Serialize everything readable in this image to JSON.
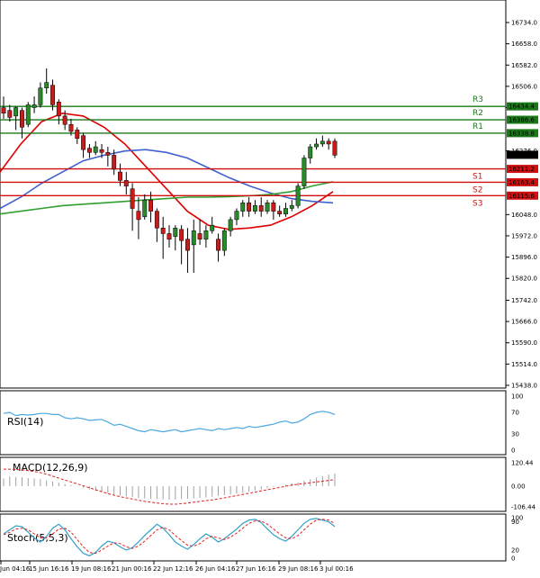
{
  "chart_data": {
    "type": "candlestick",
    "price_axis": {
      "min": 15400,
      "max": 16800,
      "ticks": [
        "16734.0",
        "16658.0",
        "16582.0",
        "16506.0",
        "16430.0",
        "16276.0",
        "16048.0",
        "15972.0",
        "15896.0",
        "15820.0",
        "15742.0",
        "15666.0",
        "15590.0",
        "15514.0",
        "15438.0"
      ],
      "current_price": "16261.5"
    },
    "levels": [
      {
        "name": "R3",
        "value": 16434.4,
        "label": "16434.4",
        "color": "#1a7a1a"
      },
      {
        "name": "R2",
        "value": 16386.6,
        "label": "16386.6",
        "color": "#1a7a1a"
      },
      {
        "name": "R1",
        "value": 16338.8,
        "label": "16338.8",
        "color": "#1a7a1a"
      },
      {
        "name": "S1",
        "value": 16211.2,
        "label": "16211.2",
        "color": "#d01010"
      },
      {
        "name": "S2",
        "value": 16163.4,
        "label": "16163.4",
        "color": "#d01010"
      },
      {
        "name": "S3",
        "value": 16115.6,
        "label": "16115.6",
        "color": "#d01010"
      }
    ],
    "candles": [
      {
        "o": 16430,
        "h": 16470,
        "c": 16410,
        "l": 16390
      },
      {
        "o": 16420,
        "h": 16440,
        "c": 16395,
        "l": 16380
      },
      {
        "o": 16400,
        "h": 16435,
        "c": 16430,
        "l": 16350
      },
      {
        "o": 16420,
        "h": 16430,
        "c": 16360,
        "l": 16320
      },
      {
        "o": 16370,
        "h": 16450,
        "c": 16440,
        "l": 16360
      },
      {
        "o": 16430,
        "h": 16470,
        "c": 16440,
        "l": 16410
      },
      {
        "o": 16440,
        "h": 16520,
        "c": 16500,
        "l": 16430
      },
      {
        "o": 16500,
        "h": 16570,
        "c": 16520,
        "l": 16480
      },
      {
        "o": 16510,
        "h": 16530,
        "c": 16440,
        "l": 16420
      },
      {
        "o": 16450,
        "h": 16460,
        "c": 16400,
        "l": 16370
      },
      {
        "o": 16400,
        "h": 16420,
        "c": 16370,
        "l": 16350
      },
      {
        "o": 16370,
        "h": 16390,
        "c": 16345,
        "l": 16330
      },
      {
        "o": 16350,
        "h": 16360,
        "c": 16320,
        "l": 16300
      },
      {
        "o": 16330,
        "h": 16340,
        "c": 16280,
        "l": 16250
      },
      {
        "o": 16285,
        "h": 16300,
        "c": 16270,
        "l": 16250
      },
      {
        "o": 16270,
        "h": 16310,
        "c": 16290,
        "l": 16260
      },
      {
        "o": 16280,
        "h": 16300,
        "c": 16270,
        "l": 16250
      },
      {
        "o": 16270,
        "h": 16290,
        "c": 16260,
        "l": 16220
      },
      {
        "o": 16260,
        "h": 16280,
        "c": 16210,
        "l": 16190
      },
      {
        "o": 16200,
        "h": 16230,
        "c": 16170,
        "l": 16150
      },
      {
        "o": 16170,
        "h": 16200,
        "c": 16150,
        "l": 16120
      },
      {
        "o": 16140,
        "h": 16160,
        "c": 16070,
        "l": 15990
      },
      {
        "o": 16060,
        "h": 16110,
        "c": 16030,
        "l": 15960
      },
      {
        "o": 16040,
        "h": 16120,
        "c": 16100,
        "l": 16030
      },
      {
        "o": 16100,
        "h": 16130,
        "c": 16060,
        "l": 16020
      },
      {
        "o": 16060,
        "h": 16070,
        "c": 16000,
        "l": 15950
      },
      {
        "o": 16000,
        "h": 16040,
        "c": 15980,
        "l": 15890
      },
      {
        "o": 15980,
        "h": 16010,
        "c": 15960,
        "l": 15930
      },
      {
        "o": 15970,
        "h": 16010,
        "c": 16000,
        "l": 15920
      },
      {
        "o": 15995,
        "h": 16010,
        "c": 15955,
        "l": 15870
      },
      {
        "o": 15960,
        "h": 16000,
        "c": 15920,
        "l": 15840
      },
      {
        "o": 15940,
        "h": 16030,
        "c": 15990,
        "l": 15840
      },
      {
        "o": 15980,
        "h": 16030,
        "c": 15960,
        "l": 15940
      },
      {
        "o": 15960,
        "h": 16010,
        "c": 15990,
        "l": 15930
      },
      {
        "o": 15990,
        "h": 16040,
        "c": 16010,
        "l": 15980
      },
      {
        "o": 15960,
        "h": 15980,
        "c": 15920,
        "l": 15880
      },
      {
        "o": 15920,
        "h": 16000,
        "c": 15990,
        "l": 15900
      },
      {
        "o": 15990,
        "h": 16040,
        "c": 16030,
        "l": 15970
      },
      {
        "o": 16030,
        "h": 16070,
        "c": 16060,
        "l": 16010
      },
      {
        "o": 16060,
        "h": 16100,
        "c": 16090,
        "l": 16040
      },
      {
        "o": 16090,
        "h": 16110,
        "c": 16060,
        "l": 16040
      },
      {
        "o": 16060,
        "h": 16100,
        "c": 16080,
        "l": 16050
      },
      {
        "o": 16080,
        "h": 16110,
        "c": 16060,
        "l": 16040
      },
      {
        "o": 16060,
        "h": 16100,
        "c": 16090,
        "l": 16050
      },
      {
        "o": 16090,
        "h": 16100,
        "c": 16060,
        "l": 16030
      },
      {
        "o": 16060,
        "h": 16080,
        "c": 16050,
        "l": 16040
      },
      {
        "o": 16050,
        "h": 16090,
        "c": 16070,
        "l": 16040
      },
      {
        "o": 16070,
        "h": 16100,
        "c": 16080,
        "l": 16060
      },
      {
        "o": 16080,
        "h": 16160,
        "c": 16150,
        "l": 16070
      },
      {
        "o": 16150,
        "h": 16260,
        "c": 16250,
        "l": 16140
      },
      {
        "o": 16250,
        "h": 16300,
        "c": 16290,
        "l": 16230
      },
      {
        "o": 16290,
        "h": 16320,
        "c": 16300,
        "l": 16280
      },
      {
        "o": 16300,
        "h": 16330,
        "c": 16310,
        "l": 16290
      },
      {
        "o": 16310,
        "h": 16320,
        "c": 16300,
        "l": 16280
      },
      {
        "o": 16310,
        "h": 16320,
        "c": 16260,
        "l": 16250
      }
    ],
    "moving_averages": [
      {
        "name": "MA fast",
        "color": "#e00000",
        "values": [
          16200,
          16300,
          16380,
          16410,
          16400,
          16360,
          16300,
          16220,
          16140,
          16060,
          16010,
          15995,
          16000,
          16010,
          16040,
          16080,
          16130
        ]
      },
      {
        "name": "MA slow",
        "color": "#4060d0",
        "values": [
          16070,
          16110,
          16160,
          16200,
          16240,
          16260,
          16275,
          16280,
          16270,
          16250,
          16215,
          16180,
          16150,
          16125,
          16105,
          16095,
          16090
        ]
      },
      {
        "name": "MA long",
        "color": "#30a030",
        "values": [
          16050,
          16060,
          16070,
          16080,
          16085,
          16090,
          16095,
          16100,
          16105,
          16110,
          16110,
          16112,
          16115,
          16120,
          16130,
          16150,
          16165
        ]
      }
    ],
    "x_labels": [
      "Jun 04:16",
      "15 Jun 16:16",
      "19 Jun 08:16",
      "21 Jun 00:16",
      "22 Jun 12:16",
      "26 Jun 04:16",
      "27 Jun 16:16",
      "29 Jun 08:16",
      "3 Jul 00:16"
    ],
    "rsi": {
      "label": "RSI(14)",
      "range": [
        0,
        100
      ],
      "ticks": [
        "100",
        "70",
        "30",
        "0"
      ],
      "values": [
        68,
        70,
        64,
        66,
        65,
        66,
        68,
        68,
        66,
        66,
        60,
        58,
        60,
        58,
        55,
        56,
        57,
        52,
        46,
        48,
        44,
        40,
        36,
        34,
        38,
        36,
        34,
        36,
        38,
        34,
        36,
        38,
        40,
        38,
        36,
        40,
        38,
        40,
        42,
        40,
        44,
        42,
        44,
        46,
        48,
        52,
        54,
        50,
        52,
        58,
        66,
        70,
        72,
        70,
        66
      ]
    },
    "macd": {
      "label": "MACD(12,26,9)",
      "range": [
        -120,
        130
      ],
      "ticks": [
        "120.44",
        "0.00",
        "-106.44"
      ],
      "histogram": [
        40,
        50,
        48,
        46,
        42,
        40,
        36,
        30,
        24,
        18,
        12,
        6,
        0,
        -8,
        -16,
        -24,
        -30,
        -36,
        -42,
        -48,
        -52,
        -56,
        -60,
        -62,
        -64,
        -66,
        -68,
        -68,
        -68,
        -66,
        -64,
        -62,
        -60,
        -58,
        -54,
        -50,
        -46,
        -42,
        -38,
        -34,
        -28,
        -22,
        -16,
        -10,
        -4,
        2,
        8,
        14,
        20,
        28,
        36,
        44,
        52,
        60,
        66
      ],
      "signal": [
        88,
        88,
        86,
        84,
        80,
        76,
        70,
        62,
        52,
        42,
        32,
        22,
        12,
        2,
        -8,
        -18,
        -28,
        -38,
        -46,
        -54,
        -60,
        -66,
        -72,
        -78,
        -82,
        -86,
        -90,
        -92,
        -92,
        -90,
        -86,
        -82,
        -78,
        -74,
        -70,
        -66,
        -60,
        -54,
        -48,
        -42,
        -36,
        -30,
        -24,
        -18,
        -12,
        -6,
        0,
        6,
        10,
        14,
        18,
        22,
        26,
        30,
        34
      ]
    },
    "stoch": {
      "label": "Stoch(5,5,3)",
      "range": [
        0,
        100
      ],
      "ticks": [
        "100",
        "90",
        "20",
        "0"
      ],
      "k": [
        60,
        70,
        80,
        78,
        64,
        50,
        40,
        54,
        74,
        84,
        70,
        48,
        28,
        12,
        6,
        14,
        30,
        42,
        38,
        28,
        20,
        26,
        40,
        56,
        70,
        84,
        74,
        58,
        40,
        30,
        22,
        34,
        48,
        60,
        52,
        40,
        48,
        60,
        72,
        86,
        94,
        96,
        88,
        72,
        58,
        48,
        42,
        54,
        70,
        86,
        96,
        98,
        94,
        90,
        78
      ],
      "d": [
        58,
        64,
        72,
        74,
        70,
        60,
        50,
        50,
        60,
        72,
        74,
        64,
        46,
        28,
        14,
        12,
        20,
        30,
        38,
        36,
        28,
        24,
        30,
        42,
        56,
        70,
        76,
        70,
        56,
        44,
        32,
        30,
        36,
        48,
        54,
        50,
        46,
        52,
        62,
        74,
        86,
        92,
        92,
        84,
        72,
        60,
        50,
        48,
        56,
        70,
        84,
        94,
        96,
        94,
        86
      ]
    }
  }
}
